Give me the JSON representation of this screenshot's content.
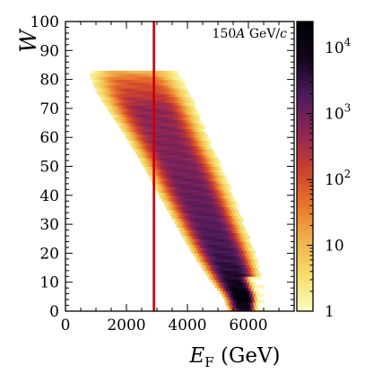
{
  "chart_data": {
    "type": "heatmap",
    "annotation": "150A GeV/c",
    "xlabel": "E_F (GeV)",
    "ylabel": "W",
    "xlim": [
      0,
      7500
    ],
    "ylim": [
      0,
      100
    ],
    "x_ticks": [
      0,
      2000,
      4000,
      6000
    ],
    "x_tick_labels": [
      "0",
      "2000",
      "4000",
      "6000"
    ],
    "y_ticks": [
      0,
      10,
      20,
      30,
      40,
      50,
      60,
      70,
      80,
      90,
      100
    ],
    "y_tick_labels": [
      "0",
      "10",
      "20",
      "30",
      "40",
      "50",
      "60",
      "70",
      "80",
      "90",
      "100"
    ],
    "colorbar": {
      "scale": "log",
      "range": [
        1,
        25000
      ],
      "ticks": [
        1,
        10,
        100,
        1000,
        10000
      ],
      "tick_labels": [
        "1",
        "10",
        "10^2",
        "10^3",
        "10^4"
      ],
      "colormap": [
        "#fcfdbf",
        "#f5dc6a",
        "#f0b04a",
        "#e8702a",
        "#c83c30",
        "#8a2458",
        "#4a1a5a",
        "#12051a",
        "#000004"
      ]
    },
    "vertical_line": {
      "x": 2900,
      "color": "#cc0000"
    },
    "band": {
      "w_min": 0,
      "w_max": 83,
      "ridge": [
        {
          "w": 0,
          "e": 5900
        },
        {
          "w": 5,
          "e": 5850
        },
        {
          "w": 10,
          "e": 5600
        },
        {
          "w": 20,
          "e": 5150
        },
        {
          "w": 30,
          "e": 4700
        },
        {
          "w": 40,
          "e": 4250
        },
        {
          "w": 50,
          "e": 3800
        },
        {
          "w": 60,
          "e": 3300
        },
        {
          "w": 70,
          "e": 2800
        },
        {
          "w": 80,
          "e": 2300
        },
        {
          "w": 83,
          "e": 2200
        }
      ],
      "half_width": [
        {
          "w": 0,
          "e": 450
        },
        {
          "w": 10,
          "e": 650
        },
        {
          "w": 20,
          "e": 800
        },
        {
          "w": 40,
          "e": 950
        },
        {
          "w": 60,
          "e": 1050
        },
        {
          "w": 75,
          "e": 1200
        },
        {
          "w": 83,
          "e": 1150
        }
      ],
      "peak_log_counts": [
        {
          "w": 0,
          "v": 3.7
        },
        {
          "w": 5,
          "v": 4.3
        },
        {
          "w": 10,
          "v": 3.8
        },
        {
          "w": 20,
          "v": 3.4
        },
        {
          "w": 30,
          "v": 3.2
        },
        {
          "w": 50,
          "v": 2.9
        },
        {
          "w": 70,
          "v": 2.7
        },
        {
          "w": 80,
          "v": 1.8
        },
        {
          "w": 83,
          "v": 1.0
        }
      ]
    }
  }
}
